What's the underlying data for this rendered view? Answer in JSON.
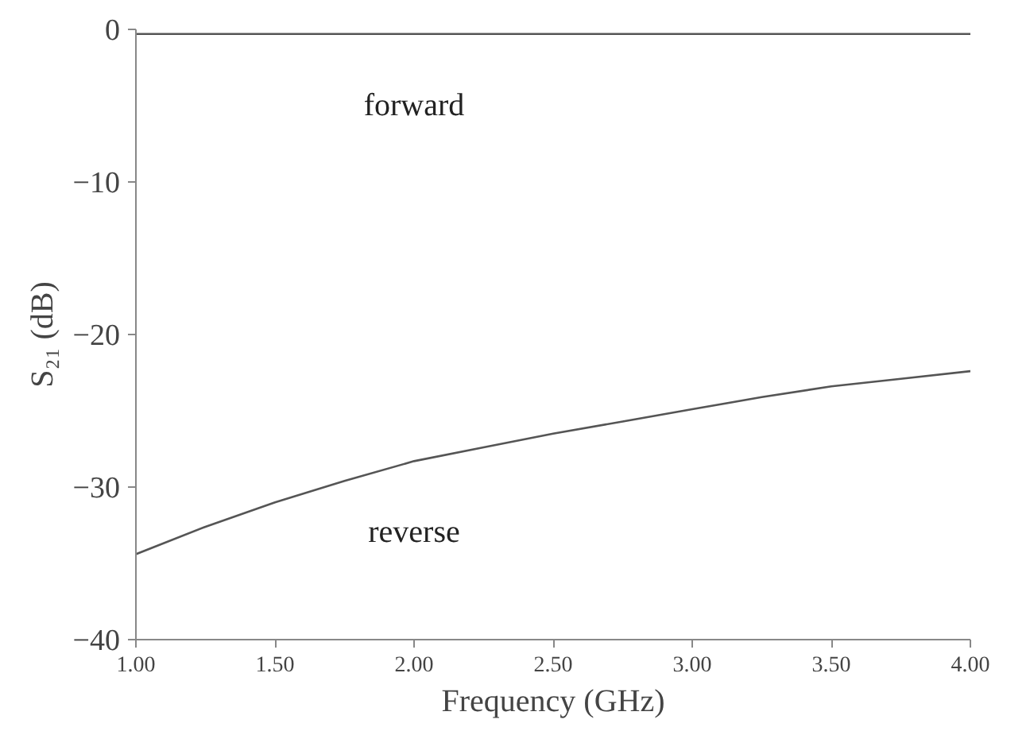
{
  "chart_data": {
    "type": "line",
    "xlabel": "Frequency (GHz)",
    "ylabel": "S₂₁ (dB)",
    "xlim": [
      1.0,
      4.0
    ],
    "xticks": [
      {
        "value": 1.0,
        "label": "1.00"
      },
      {
        "value": 1.5,
        "label": "1.50"
      },
      {
        "value": 2.0,
        "label": "2.00"
      },
      {
        "value": 2.5,
        "label": "2.50"
      },
      {
        "value": 3.0,
        "label": "3.00"
      },
      {
        "value": 3.5,
        "label": "3.50"
      },
      {
        "value": 4.0,
        "label": "4.00"
      }
    ],
    "ylim": [
      -40,
      0
    ],
    "yticks": [
      -40,
      -30,
      -20,
      -10,
      0
    ],
    "grid": false,
    "x": [
      1.0,
      1.25,
      1.5,
      1.75,
      2.0,
      2.25,
      2.5,
      2.75,
      3.0,
      3.25,
      3.5,
      3.75,
      4.0
    ],
    "series": [
      {
        "name": "forward",
        "color": "#555555",
        "values": [
          -0.3,
          -0.3,
          -0.3,
          -0.3,
          -0.3,
          -0.3,
          -0.3,
          -0.3,
          -0.3,
          -0.3,
          -0.3,
          -0.3,
          -0.3
        ]
      },
      {
        "name": "reverse",
        "color": "#555555",
        "values": [
          -34.4,
          -32.6,
          -31.0,
          -29.6,
          -28.3,
          -27.4,
          -26.5,
          -25.7,
          -24.9,
          -24.1,
          -23.4,
          -22.9,
          -22.4
        ]
      }
    ]
  }
}
